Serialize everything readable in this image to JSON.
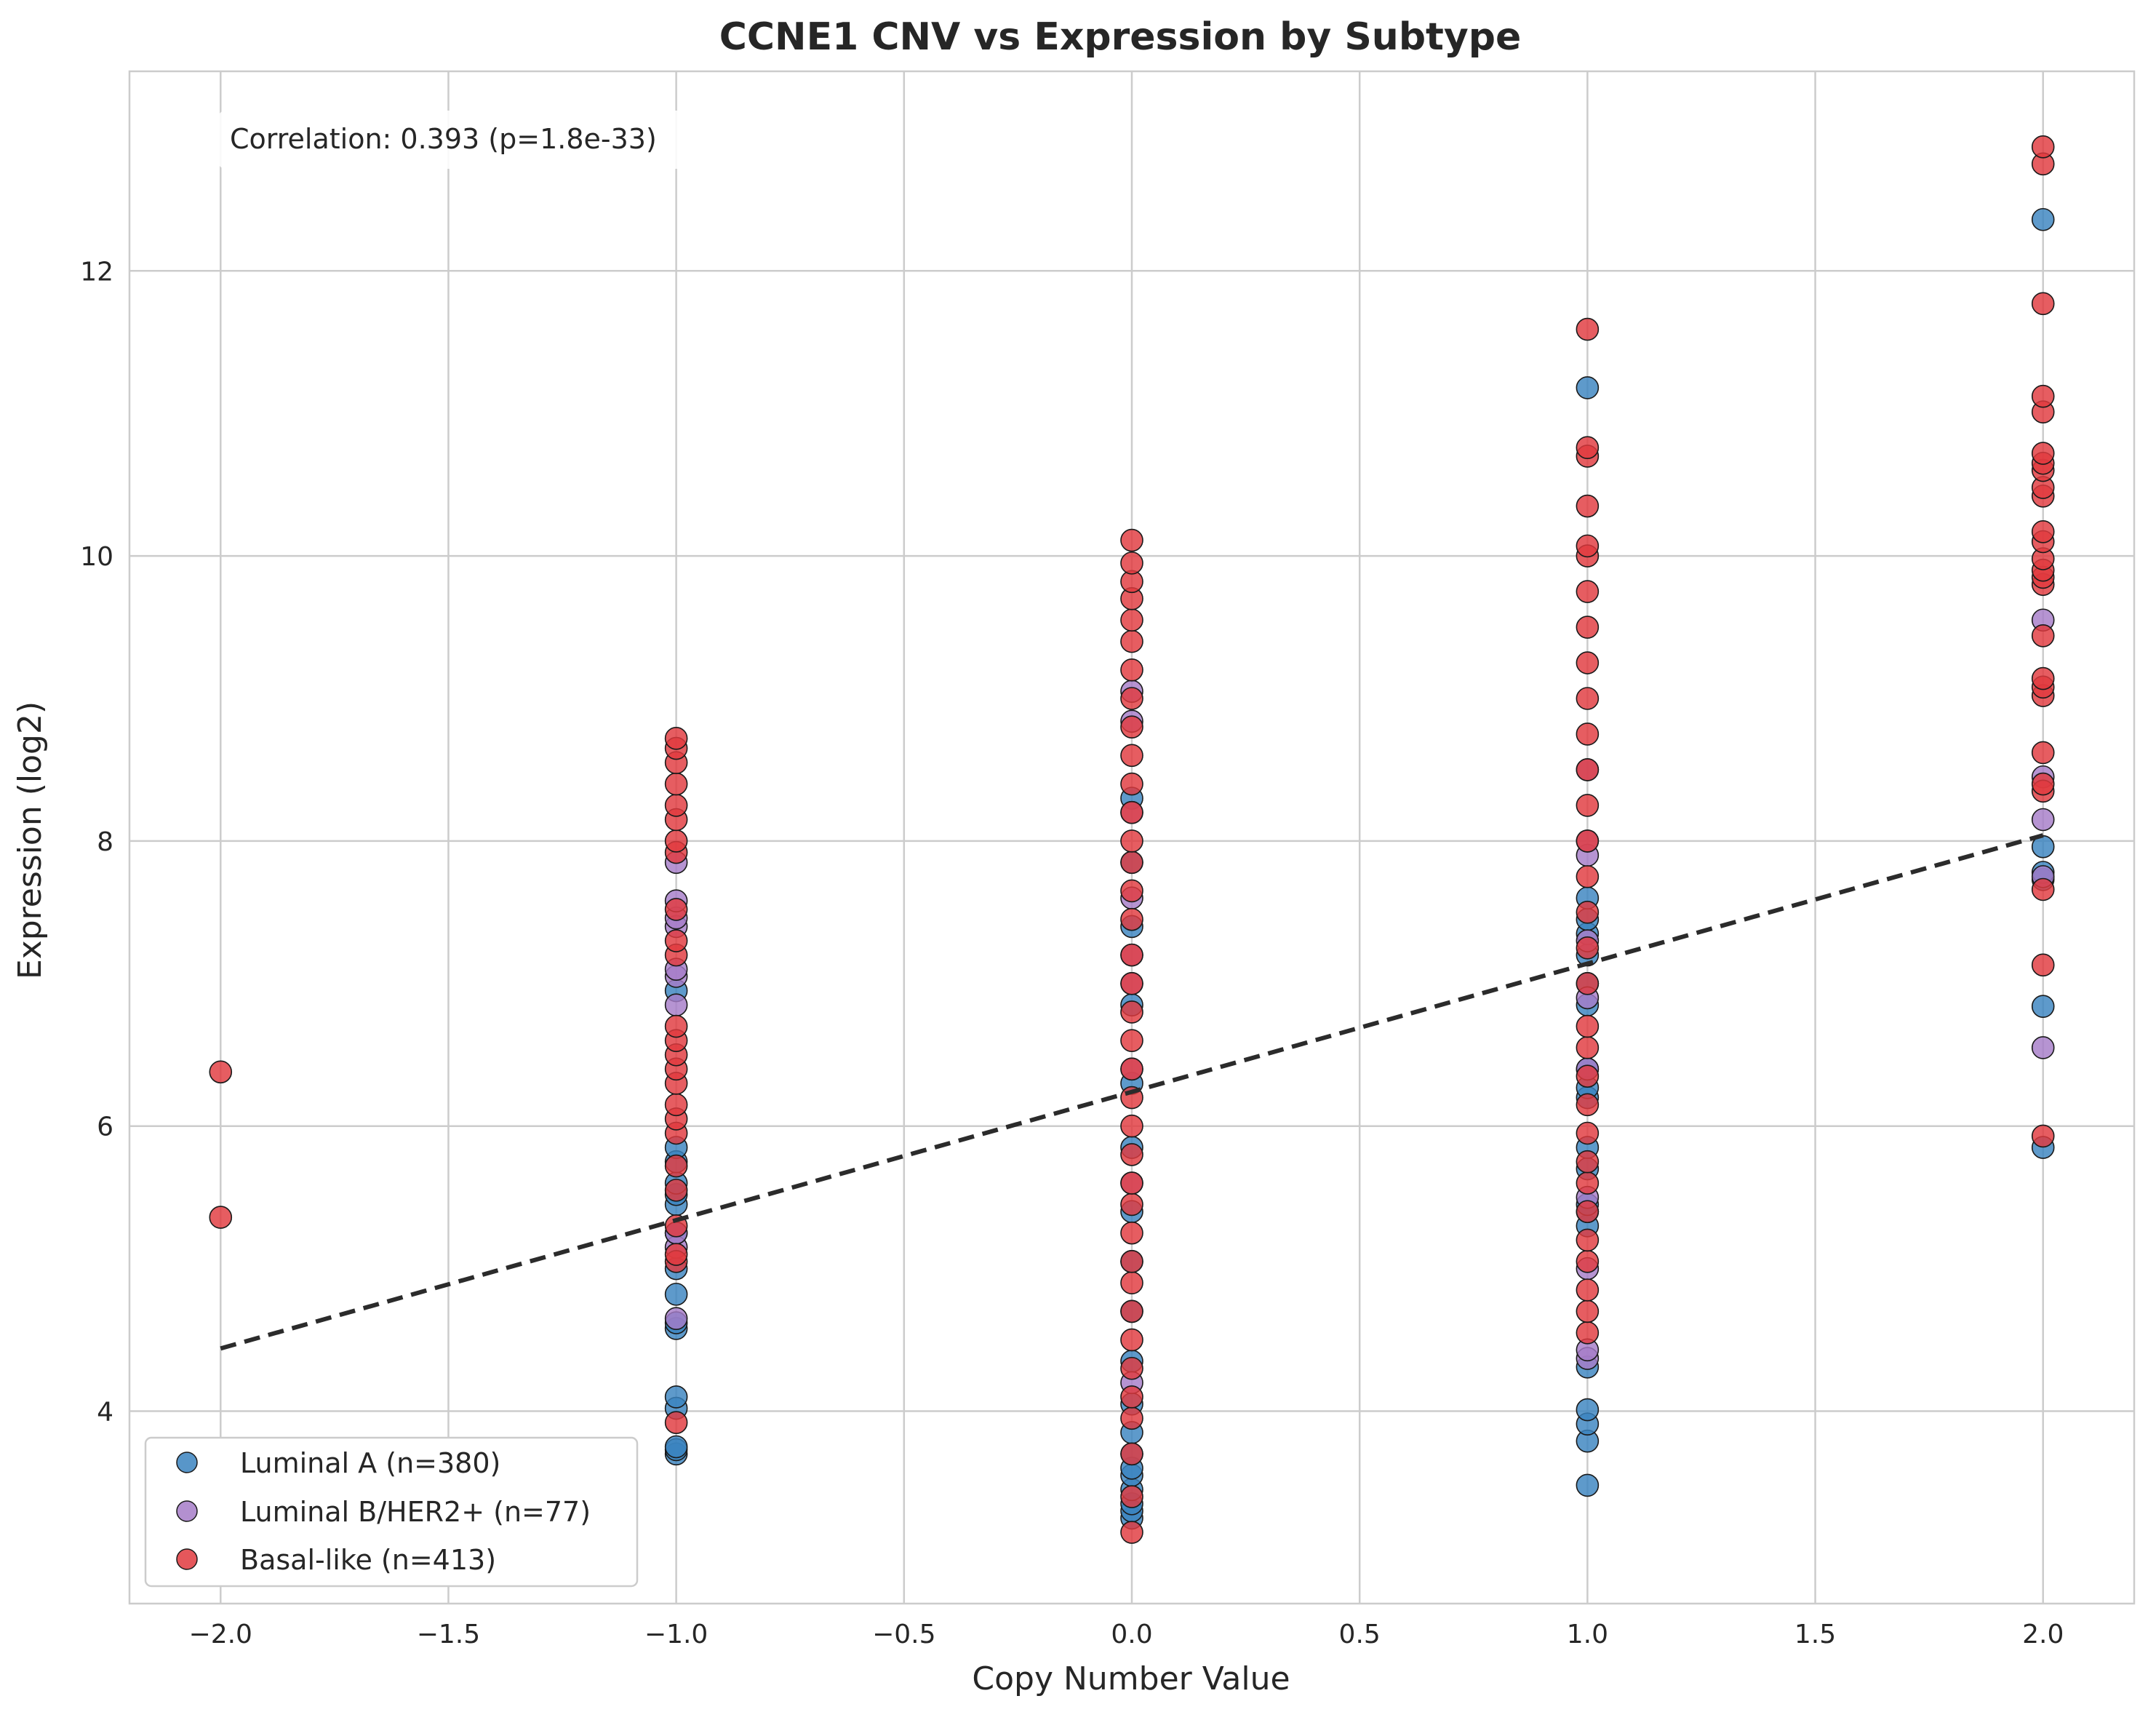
{
  "chart_data": {
    "type": "scatter",
    "title": "CCNE1 CNV vs Expression by Subtype",
    "xlabel": "Copy Number Value",
    "ylabel": "Expression (log2)",
    "xlim": [
      -2.2,
      2.2
    ],
    "ylim": [
      2.65,
      13.4
    ],
    "grid": true,
    "legend_position": "lower-left",
    "x_ticks": [
      -2.0,
      -1.5,
      -1.0,
      -0.5,
      0.0,
      0.5,
      1.0,
      1.5,
      2.0
    ],
    "x_tick_labels": [
      "−2.0",
      "−1.5",
      "−1.0",
      "−0.5",
      "0.0",
      "0.5",
      "1.0",
      "1.5",
      "2.0"
    ],
    "y_ticks": [
      4,
      6,
      8,
      10,
      12
    ],
    "y_tick_labels": [
      "4",
      "6",
      "8",
      "10",
      "12"
    ],
    "annotation": "Correlation: 0.393 (p=1.8e-33)",
    "trendline": {
      "style": "dashed",
      "color": "#2b2b2b",
      "x": [
        -2.0,
        2.0
      ],
      "y": [
        4.44,
        8.04
      ]
    },
    "series": [
      {
        "name": "Luminal A (n=380)",
        "color": "#3b84c0",
        "points": [
          [
            -1.0,
            3.7
          ],
          [
            -1.0,
            3.73
          ],
          [
            -1.0,
            3.75
          ],
          [
            -1.0,
            4.02
          ],
          [
            -1.0,
            4.1
          ],
          [
            -1.0,
            4.58
          ],
          [
            -1.0,
            4.62
          ],
          [
            -1.0,
            4.82
          ],
          [
            -1.0,
            5.0
          ],
          [
            -1.0,
            5.25
          ],
          [
            -1.0,
            5.45
          ],
          [
            -1.0,
            5.52
          ],
          [
            -1.0,
            5.6
          ],
          [
            -1.0,
            5.75
          ],
          [
            -1.0,
            5.85
          ],
          [
            -1.0,
            6.95
          ],
          [
            0.0,
            3.25
          ],
          [
            0.0,
            3.3
          ],
          [
            0.0,
            3.35
          ],
          [
            0.0,
            3.45
          ],
          [
            0.0,
            3.55
          ],
          [
            0.0,
            3.6
          ],
          [
            0.0,
            3.7
          ],
          [
            0.0,
            3.85
          ],
          [
            0.0,
            4.05
          ],
          [
            0.0,
            4.35
          ],
          [
            0.0,
            4.7
          ],
          [
            0.0,
            5.05
          ],
          [
            0.0,
            5.4
          ],
          [
            0.0,
            5.85
          ],
          [
            0.0,
            6.3
          ],
          [
            0.0,
            6.85
          ],
          [
            0.0,
            7.4
          ],
          [
            0.0,
            7.85
          ],
          [
            0.0,
            8.3
          ],
          [
            1.0,
            3.48
          ],
          [
            1.0,
            3.79
          ],
          [
            1.0,
            3.91
          ],
          [
            1.0,
            4.01
          ],
          [
            1.0,
            4.31
          ],
          [
            1.0,
            5.3
          ],
          [
            1.0,
            5.4
          ],
          [
            1.0,
            5.45
          ],
          [
            1.0,
            5.7
          ],
          [
            1.0,
            5.85
          ],
          [
            1.0,
            6.2
          ],
          [
            1.0,
            6.27
          ],
          [
            1.0,
            6.4
          ],
          [
            1.0,
            6.85
          ],
          [
            1.0,
            7.0
          ],
          [
            1.0,
            7.2
          ],
          [
            1.0,
            7.35
          ],
          [
            1.0,
            7.45
          ],
          [
            1.0,
            7.6
          ],
          [
            1.0,
            11.18
          ],
          [
            2.0,
            5.85
          ],
          [
            2.0,
            6.84
          ],
          [
            2.0,
            7.73
          ],
          [
            2.0,
            7.78
          ],
          [
            2.0,
            7.96
          ],
          [
            2.0,
            12.36
          ]
        ]
      },
      {
        "name": "Luminal B/HER2+ (n=77)",
        "color": "#a67cc8",
        "points": [
          [
            -1.0,
            4.65
          ],
          [
            -1.0,
            5.15
          ],
          [
            -1.0,
            5.25
          ],
          [
            -1.0,
            6.85
          ],
          [
            -1.0,
            7.05
          ],
          [
            -1.0,
            7.1
          ],
          [
            -1.0,
            7.4
          ],
          [
            -1.0,
            7.46
          ],
          [
            -1.0,
            7.58
          ],
          [
            -1.0,
            7.85
          ],
          [
            0.0,
            4.2
          ],
          [
            0.0,
            5.6
          ],
          [
            0.0,
            6.4
          ],
          [
            0.0,
            7.0
          ],
          [
            0.0,
            7.2
          ],
          [
            0.0,
            7.6
          ],
          [
            0.0,
            8.2
          ],
          [
            0.0,
            8.84
          ],
          [
            0.0,
            9.05
          ],
          [
            1.0,
            4.37
          ],
          [
            1.0,
            4.43
          ],
          [
            1.0,
            5.0
          ],
          [
            1.0,
            5.5
          ],
          [
            1.0,
            6.4
          ],
          [
            1.0,
            6.9
          ],
          [
            1.0,
            7.3
          ],
          [
            1.0,
            7.9
          ],
          [
            1.0,
            8.0
          ],
          [
            1.0,
            8.5
          ],
          [
            2.0,
            6.55
          ],
          [
            2.0,
            7.75
          ],
          [
            2.0,
            8.15
          ],
          [
            2.0,
            8.45
          ],
          [
            2.0,
            9.55
          ]
        ]
      },
      {
        "name": "Basal-like (n=413)",
        "color": "#e0393e",
        "points": [
          [
            -2.0,
            6.38
          ],
          [
            -2.0,
            5.36
          ],
          [
            -1.0,
            3.92
          ],
          [
            -1.0,
            5.05
          ],
          [
            -1.0,
            5.1
          ],
          [
            -1.0,
            5.3
          ],
          [
            -1.0,
            5.55
          ],
          [
            -1.0,
            5.72
          ],
          [
            -1.0,
            5.95
          ],
          [
            -1.0,
            6.05
          ],
          [
            -1.0,
            6.15
          ],
          [
            -1.0,
            6.3
          ],
          [
            -1.0,
            6.4
          ],
          [
            -1.0,
            6.5
          ],
          [
            -1.0,
            6.6
          ],
          [
            -1.0,
            6.7
          ],
          [
            -1.0,
            7.2
          ],
          [
            -1.0,
            7.3
          ],
          [
            -1.0,
            7.52
          ],
          [
            -1.0,
            7.92
          ],
          [
            -1.0,
            8.0
          ],
          [
            -1.0,
            8.15
          ],
          [
            -1.0,
            8.25
          ],
          [
            -1.0,
            8.4
          ],
          [
            -1.0,
            8.55
          ],
          [
            -1.0,
            8.65
          ],
          [
            -1.0,
            8.72
          ],
          [
            0.0,
            3.15
          ],
          [
            0.0,
            3.4
          ],
          [
            0.0,
            3.7
          ],
          [
            0.0,
            3.95
          ],
          [
            0.0,
            4.1
          ],
          [
            0.0,
            4.3
          ],
          [
            0.0,
            4.5
          ],
          [
            0.0,
            4.7
          ],
          [
            0.0,
            4.9
          ],
          [
            0.0,
            5.05
          ],
          [
            0.0,
            5.25
          ],
          [
            0.0,
            5.45
          ],
          [
            0.0,
            5.6
          ],
          [
            0.0,
            5.8
          ],
          [
            0.0,
            6.0
          ],
          [
            0.0,
            6.2
          ],
          [
            0.0,
            6.4
          ],
          [
            0.0,
            6.6
          ],
          [
            0.0,
            6.8
          ],
          [
            0.0,
            7.0
          ],
          [
            0.0,
            7.2
          ],
          [
            0.0,
            7.45
          ],
          [
            0.0,
            7.65
          ],
          [
            0.0,
            7.85
          ],
          [
            0.0,
            8.0
          ],
          [
            0.0,
            8.2
          ],
          [
            0.0,
            8.4
          ],
          [
            0.0,
            8.6
          ],
          [
            0.0,
            8.8
          ],
          [
            0.0,
            9.0
          ],
          [
            0.0,
            9.2
          ],
          [
            0.0,
            9.4
          ],
          [
            0.0,
            9.55
          ],
          [
            0.0,
            9.7
          ],
          [
            0.0,
            9.82
          ],
          [
            0.0,
            9.95
          ],
          [
            0.0,
            10.11
          ],
          [
            1.0,
            4.55
          ],
          [
            1.0,
            4.7
          ],
          [
            1.0,
            4.85
          ],
          [
            1.0,
            5.05
          ],
          [
            1.0,
            5.2
          ],
          [
            1.0,
            5.4
          ],
          [
            1.0,
            5.6
          ],
          [
            1.0,
            5.75
          ],
          [
            1.0,
            5.95
          ],
          [
            1.0,
            6.15
          ],
          [
            1.0,
            6.35
          ],
          [
            1.0,
            6.55
          ],
          [
            1.0,
            6.7
          ],
          [
            1.0,
            7.0
          ],
          [
            1.0,
            7.25
          ],
          [
            1.0,
            7.5
          ],
          [
            1.0,
            7.75
          ],
          [
            1.0,
            8.0
          ],
          [
            1.0,
            8.25
          ],
          [
            1.0,
            8.5
          ],
          [
            1.0,
            8.75
          ],
          [
            1.0,
            9.0
          ],
          [
            1.0,
            9.25
          ],
          [
            1.0,
            9.5
          ],
          [
            1.0,
            9.75
          ],
          [
            1.0,
            10.0
          ],
          [
            1.0,
            10.07
          ],
          [
            1.0,
            10.35
          ],
          [
            1.0,
            10.7
          ],
          [
            1.0,
            10.76
          ],
          [
            1.0,
            11.59
          ],
          [
            2.0,
            5.93
          ],
          [
            2.0,
            7.13
          ],
          [
            2.0,
            7.66
          ],
          [
            2.0,
            8.35
          ],
          [
            2.0,
            8.4
          ],
          [
            2.0,
            8.62
          ],
          [
            2.0,
            9.02
          ],
          [
            2.0,
            9.08
          ],
          [
            2.0,
            9.14
          ],
          [
            2.0,
            9.44
          ],
          [
            2.0,
            9.8
          ],
          [
            2.0,
            9.85
          ],
          [
            2.0,
            9.9
          ],
          [
            2.0,
            9.98
          ],
          [
            2.0,
            10.1
          ],
          [
            2.0,
            10.17
          ],
          [
            2.0,
            10.42
          ],
          [
            2.0,
            10.48
          ],
          [
            2.0,
            10.6
          ],
          [
            2.0,
            10.65
          ],
          [
            2.0,
            10.72
          ],
          [
            2.0,
            11.01
          ],
          [
            2.0,
            11.12
          ],
          [
            2.0,
            11.77
          ],
          [
            2.0,
            12.75
          ],
          [
            2.0,
            12.87
          ]
        ]
      }
    ]
  }
}
